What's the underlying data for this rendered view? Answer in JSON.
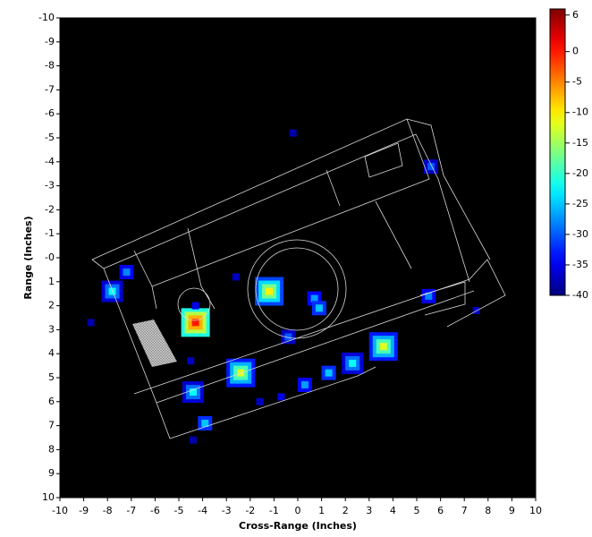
{
  "chart_data": {
    "type": "heatmap",
    "x_label": "Cross-Range (Inches)",
    "y_label": "Range (Inches)",
    "xlim": [
      -10,
      10
    ],
    "ylim": [
      -10,
      10
    ],
    "y_inverted": true,
    "xticks": [
      -10,
      -9,
      -8,
      -7,
      -6,
      -5,
      -4,
      -3,
      -2,
      -1,
      0,
      1,
      2,
      3,
      4,
      5,
      6,
      7,
      8,
      9,
      10
    ],
    "yticks": [
      -10,
      -9,
      -8,
      -7,
      -6,
      -5,
      -4,
      -3,
      -2,
      -1,
      {
        "value": 0,
        "label": "-0"
      },
      1,
      2,
      3,
      4,
      5,
      6,
      7,
      8,
      9,
      10
    ],
    "colormap": "jet",
    "clim": [
      -40,
      7
    ],
    "cticks": [
      6,
      0,
      -5,
      -10,
      -15,
      -20,
      -25,
      -30,
      -35,
      -40
    ],
    "x": [
      -7.8,
      -7.2,
      -4.3,
      -4.3,
      -4.4,
      -3.9,
      -2.4,
      -1.2,
      0.7,
      0.9,
      -0.4,
      0.3,
      1.3,
      2.3,
      3.6,
      5.5,
      5.6,
      7.5,
      -2.6,
      -0.2,
      -0.7,
      -1.6,
      -4.4,
      -8.7,
      -4.5
    ],
    "y": [
      1.4,
      0.6,
      2.7,
      2.0,
      5.6,
      6.9,
      4.8,
      1.4,
      1.7,
      2.1,
      3.3,
      5.3,
      4.8,
      4.4,
      3.7,
      1.6,
      -3.8,
      2.2,
      0.8,
      -5.2,
      5.8,
      6.0,
      7.6,
      2.7,
      4.3
    ],
    "values": [
      -22,
      -28,
      0,
      -35,
      -22,
      -25,
      -12,
      -10,
      -27,
      -25,
      -30,
      -27,
      -25,
      -22,
      -12,
      -28,
      -30,
      -37,
      -37,
      -38,
      -35,
      -37,
      -38,
      -38,
      -37
    ]
  }
}
